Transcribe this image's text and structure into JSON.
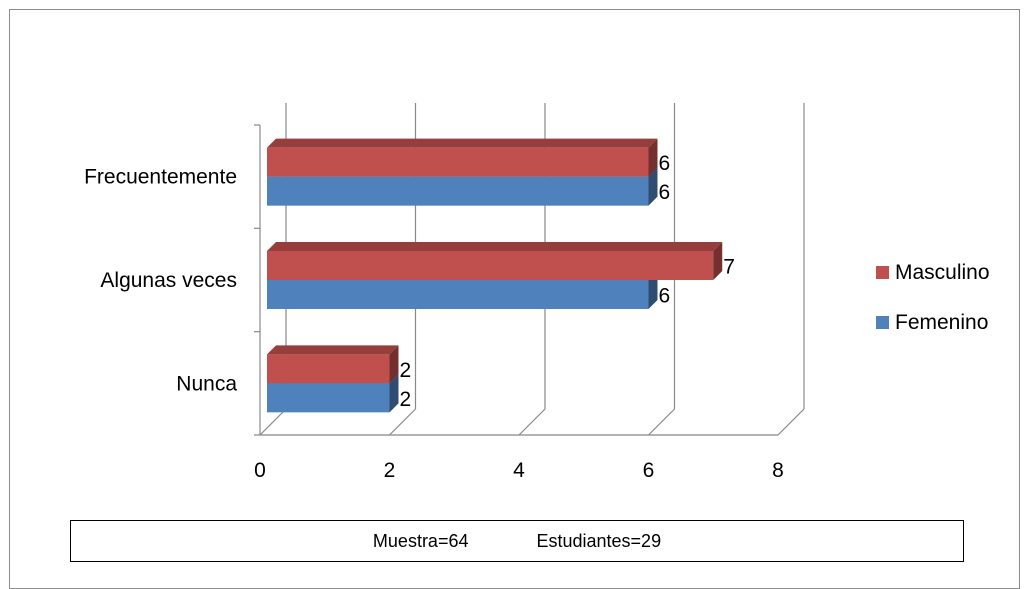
{
  "chart_data": {
    "type": "bar",
    "orientation": "horizontal",
    "style": "3d-clustered",
    "categories": [
      "Nunca",
      "Algunas veces",
      "Frecuentemente"
    ],
    "series": [
      {
        "name": "Femenino",
        "values": [
          2,
          6,
          6
        ],
        "color": "#4F81BD"
      },
      {
        "name": "Masculino",
        "values": [
          2,
          7,
          6
        ],
        "color": "#C0504D"
      }
    ],
    "xlim": [
      0,
      8
    ],
    "xticks": [
      "0",
      "2",
      "4",
      "6",
      "8"
    ],
    "grid": true,
    "legend_placement": "right",
    "data_labels": true
  },
  "note": {
    "muestra": "Muestra=64",
    "estudiantes": "Estudiantes=29"
  }
}
